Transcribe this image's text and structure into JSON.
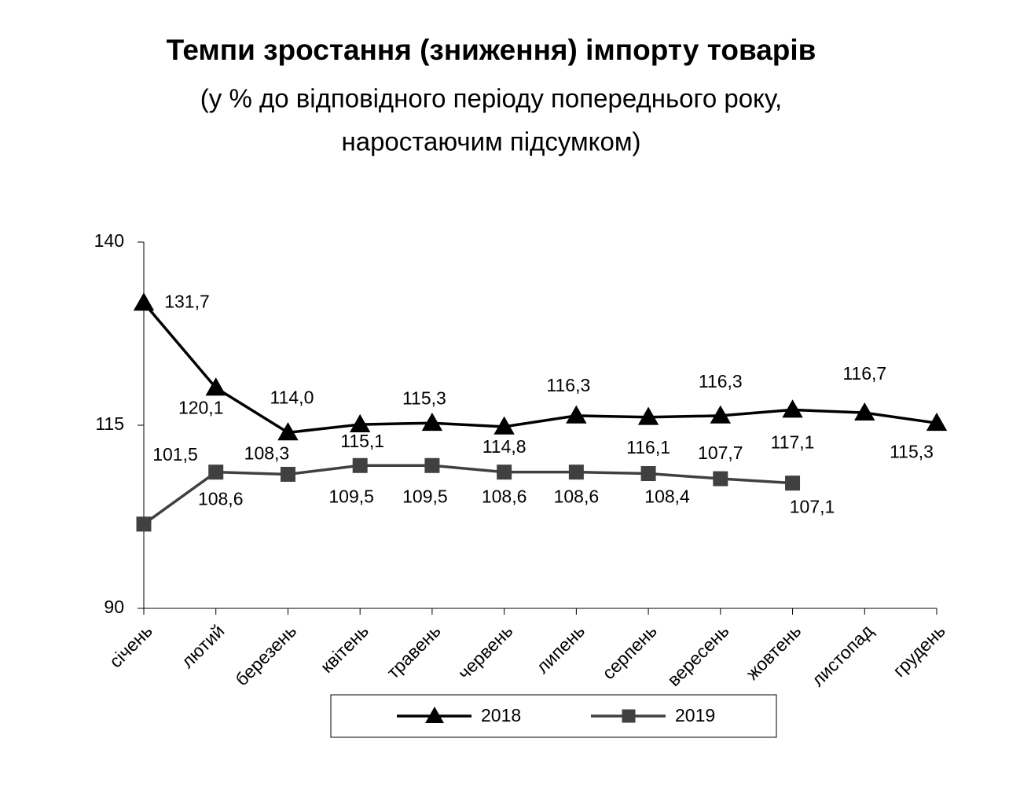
{
  "chart_data": {
    "type": "line",
    "title": "Темпи зростання (зниження) імпорту товарів",
    "subtitle": [
      "(у % до відповідного періоду попереднього року,",
      "наростаючим підсумком)"
    ],
    "categories": [
      "січень",
      "лютий",
      "березень",
      "квітень",
      "травень",
      "червень",
      "липень",
      "серпень",
      "вересень",
      "жовтень",
      "листопад",
      "грудень"
    ],
    "series": [
      {
        "name": "2018",
        "color": "#000000",
        "marker": "triangle",
        "values": [
          131.7,
          120.1,
          114.0,
          115.1,
          115.3,
          114.8,
          116.3,
          116.1,
          116.3,
          117.1,
          116.7,
          115.3
        ],
        "value_labels": [
          "131,7",
          "120,1",
          "114,0",
          "115,1",
          "115,3",
          "114,8",
          "116,3",
          "116,1",
          "116,3",
          "117,1",
          "116,7",
          "115,3"
        ]
      },
      {
        "name": "2019",
        "color": "#404040",
        "marker": "square",
        "values": [
          101.5,
          108.6,
          108.3,
          109.5,
          109.5,
          108.6,
          108.6,
          108.4,
          107.7,
          107.1,
          null,
          null
        ],
        "value_labels": [
          "101,5",
          "108,6",
          "108,3",
          "109,5",
          "109,5",
          "108,6",
          "108,6",
          "108,4",
          "107,7",
          "107,1",
          null,
          null
        ]
      }
    ],
    "ylim": [
      90,
      140
    ],
    "yticks": [
      90,
      115,
      140
    ],
    "grid": false,
    "legend": "bottom"
  }
}
